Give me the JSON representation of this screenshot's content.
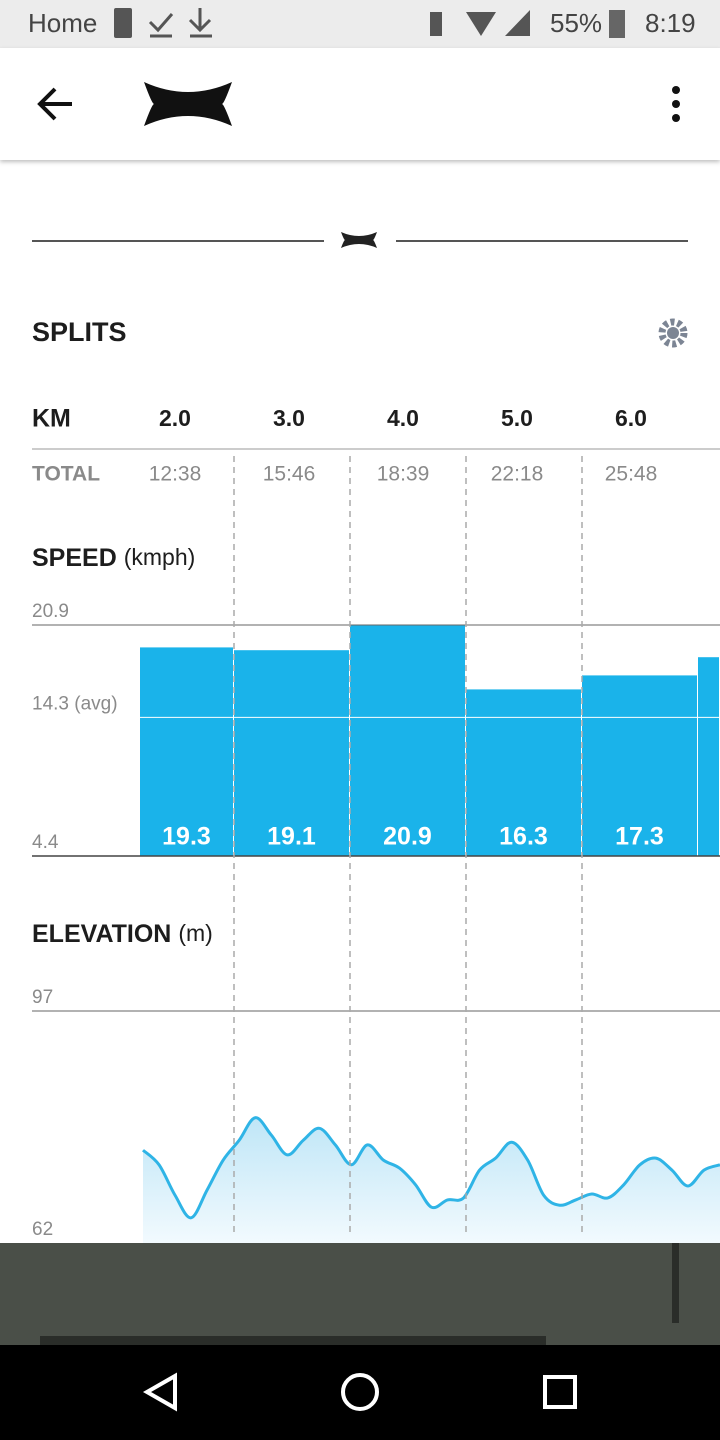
{
  "status_bar": {
    "left": "Home",
    "battery": "55%",
    "time": "8:19"
  },
  "splits": {
    "title": "SPLITS",
    "header_label": "KM",
    "km": [
      "2.0",
      "3.0",
      "4.0",
      "5.0",
      "6.0"
    ],
    "total_label": "TOTAL",
    "totals": [
      "12:38",
      "15:46",
      "18:39",
      "22:18",
      "25:48"
    ]
  },
  "speed": {
    "type": "bar",
    "title": "SPEED",
    "unit": "(kmph)",
    "values": [
      19.3,
      19.1,
      20.9,
      16.3,
      17.3,
      18.6
    ],
    "color": "#1ab3ea",
    "ylim": [
      4.4,
      20.9
    ],
    "yticks": [
      4.4,
      {
        "value": 14.3,
        "label": "14.3 (avg)"
      },
      20.9
    ]
  },
  "elevation": {
    "type": "area",
    "title": "ELEVATION",
    "unit": "(m)",
    "color": "#2fb4e6",
    "ylim": [
      62,
      97
    ],
    "yticks": [
      62,
      97
    ],
    "values": [
      76.0,
      73.8,
      69.2,
      65.8,
      70.0,
      74.5,
      77.5,
      80.9,
      78.3,
      75.3,
      77.5,
      79.3,
      76.8,
      73.8,
      76.8,
      74.5,
      73.3,
      70.8,
      67.4,
      68.5,
      68.8,
      73.0,
      74.8,
      77.2,
      74.5,
      69.2,
      67.7,
      68.5,
      69.4,
      68.8,
      70.8,
      73.8,
      74.8,
      73.0,
      70.6,
      73.0,
      73.8
    ]
  }
}
